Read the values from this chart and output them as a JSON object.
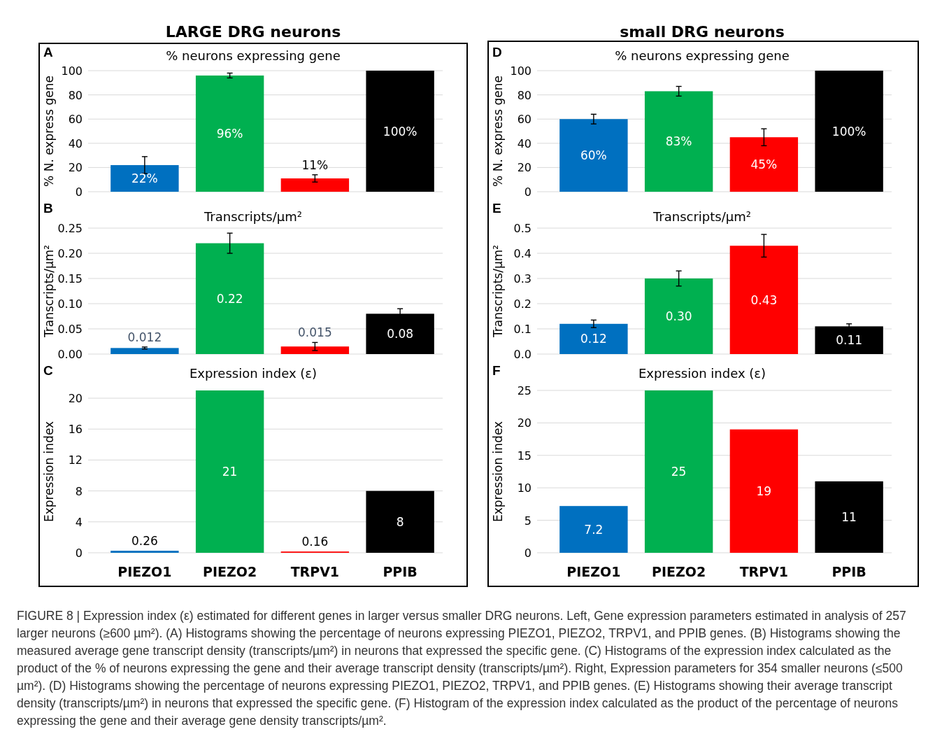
{
  "chart_data": [
    {
      "type": "bar",
      "title": "LARGE DRG neurons",
      "subtitle": "% neurons expressing gene",
      "ylabel": "% N. express gene",
      "annotations": [
        "A"
      ],
      "categories": [
        null,
        null,
        null,
        null
      ],
      "values": [
        22,
        96,
        11,
        100
      ],
      "colors": [
        "#0070c0",
        "#00b050",
        "#ff0000",
        "#000000"
      ],
      "errors": [
        7,
        2,
        3,
        null
      ],
      "value_labels": [
        "22%",
        "96%",
        "11%",
        "100%"
      ],
      "ylim": [
        0,
        100
      ],
      "yticks": [
        0,
        20,
        40,
        60,
        80,
        100
      ],
      "grid": "y",
      "tick_labels": "y"
    },
    {
      "type": "bar",
      "title": "Transcripts/µm²",
      "ylabel": "Transcripts/µm²",
      "annotations": [
        "B"
      ],
      "categories": [
        null,
        null,
        null,
        null
      ],
      "values": [
        0.012,
        0.22,
        0.015,
        0.08
      ],
      "colors": [
        "#0070c0",
        "#00b050",
        "#ff0000",
        "#000000"
      ],
      "errors": [
        0.002,
        0.02,
        0.008,
        0.01
      ],
      "value_labels": [
        "0.012",
        "0.22",
        "0.015",
        "0.08"
      ],
      "ylim": [
        0,
        0.25
      ],
      "yticks": [
        {
          "value": 0,
          "label": "0.00"
        },
        {
          "value": 0.05,
          "label": "0.05"
        },
        {
          "value": 0.1,
          "label": "0.10"
        },
        {
          "value": 0.15,
          "label": "0.15"
        },
        {
          "value": 0.2,
          "label": "0.20"
        },
        {
          "value": 0.25,
          "label": "0.25"
        }
      ],
      "grid": "y",
      "tick_labels": "y"
    },
    {
      "type": "bar",
      "title": "Expression index (ε)",
      "ylabel": "Expression index",
      "annotations": [
        "C"
      ],
      "categories": [
        "PIEZO1",
        "PIEZO2",
        "TRPV1",
        "PPIB"
      ],
      "values": [
        0.26,
        21,
        0.16,
        8
      ],
      "colors": [
        "#0070c0",
        "#00b050",
        "#ff0000",
        "#000000"
      ],
      "value_labels": [
        "0.26",
        "21",
        "0.16",
        "8"
      ],
      "ylim": [
        0,
        21
      ],
      "yticks": [
        0,
        4,
        8,
        12,
        16,
        20
      ],
      "grid": "y"
    },
    {
      "type": "bar",
      "title": "small DRG neurons",
      "subtitle": "% neurons expressing gene",
      "ylabel": "% N. express gene",
      "annotations": [
        "D"
      ],
      "categories": [
        null,
        null,
        null,
        null
      ],
      "values": [
        60,
        83,
        45,
        100
      ],
      "colors": [
        "#0070c0",
        "#00b050",
        "#ff0000",
        "#000000"
      ],
      "errors": [
        4,
        4,
        7,
        null
      ],
      "value_labels": [
        "60%",
        "83%",
        "45%",
        "100%"
      ],
      "ylim": [
        0,
        100
      ],
      "yticks": [
        0,
        20,
        40,
        60,
        80,
        100
      ],
      "grid": "y",
      "tick_labels": "y"
    },
    {
      "type": "bar",
      "title": "Transcripts/µm²",
      "ylabel": "Transcripts/µm²",
      "annotations": [
        "E"
      ],
      "categories": [
        null,
        null,
        null,
        null
      ],
      "values": [
        0.12,
        0.3,
        0.43,
        0.11
      ],
      "colors": [
        "#0070c0",
        "#00b050",
        "#ff0000",
        "#000000"
      ],
      "errors": [
        0.015,
        0.03,
        0.045,
        0.01
      ],
      "value_labels": [
        "0.12",
        "0.30",
        "0.43",
        "0.11"
      ],
      "ylim": [
        0,
        0.5
      ],
      "yticks": [
        {
          "value": 0,
          "label": "0.0"
        },
        0.1,
        0.2,
        0.3,
        0.4,
        0.5
      ],
      "grid": "y",
      "tick_labels": "y"
    },
    {
      "type": "bar",
      "title": "Expression index (ε)",
      "ylabel": "Expression index",
      "annotations": [
        "F",
        "FIGURE 8 | Expression index (ε) estimated for different genes in larger versus smaller DRG neurons. Left, Gene expression parameters estimated in analysis of 257 larger neurons (≥600 µm²). (A) Histograms showing the percentage of neurons expressing PIEZO1, PIEZO2, TRPV1, and PPIB genes. (B) Histograms showing the measured average gene transcript density (transcripts/µm²) in neurons that expressed the specific gene. (C) Histograms of the expression index calculated as the product of the % of neurons expressing the gene and their average transcript density (transcripts/µm²). Right, Expression parameters for 354 smaller neurons (≤500 µm²). (D) Histograms showing the percentage of neurons expressing PIEZO1, PIEZO2, TRPV1, and PPIB genes. (E) Histograms showing their average transcript density (transcripts/µm²) in neurons that expressed the specific gene. (F) Histogram of the expression index calculated as the product of the percentage of neurons expressing the gene and their average gene density transcripts/µm²."
      ],
      "categories": [
        "PIEZO1",
        "PIEZO2",
        "TRPV1",
        "PPIB"
      ],
      "values": [
        7.2,
        25,
        19,
        11
      ],
      "colors": [
        "#0070c0",
        "#00b050",
        "#ff0000",
        "#000000"
      ],
      "value_labels": [
        "7.2",
        "25",
        "19",
        "11"
      ],
      "ylim": [
        0,
        25
      ],
      "yticks": [
        0,
        5,
        10,
        15,
        20,
        25
      ],
      "grid": "y"
    }
  ]
}
